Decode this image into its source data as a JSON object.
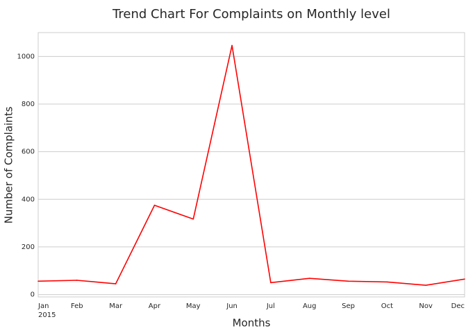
{
  "chart_data": {
    "type": "line",
    "title": "Trend Chart For Complaints on Monthly level",
    "xlabel": "Months",
    "ylabel": "Number of Complaints",
    "categories": [
      "Jan",
      "Feb",
      "Mar",
      "Apr",
      "May",
      "Jun",
      "Jul",
      "Aug",
      "Sep",
      "Oct",
      "Nov",
      "Dec"
    ],
    "year_label": "2015",
    "series": [
      {
        "values": [
          56,
          60,
          45,
          375,
          317,
          1046,
          50,
          68,
          56,
          53,
          39,
          65
        ],
        "color": "#ff0000"
      }
    ],
    "ylim": [
      -10,
      1100
    ],
    "yticks": [
      0,
      200,
      400,
      600,
      800,
      1000
    ],
    "grid": "horizontal",
    "legend": "none"
  }
}
